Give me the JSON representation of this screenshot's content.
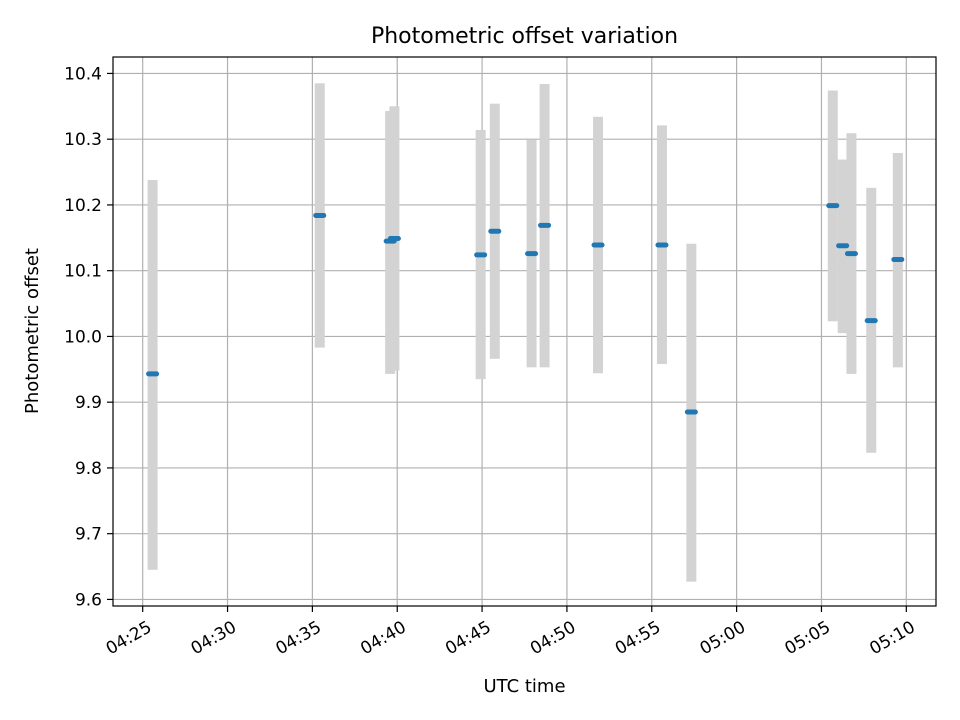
{
  "chart_data": {
    "type": "scatter",
    "title": "Photometric offset variation",
    "xlabel": "UTC time",
    "ylabel": "Photometric offset",
    "xlim": [
      "04:23:15",
      "05:11:45"
    ],
    "ylim": [
      9.59,
      10.425
    ],
    "x_ticks": [
      "04:25",
      "04:30",
      "04:35",
      "04:40",
      "04:45",
      "04:50",
      "04:55",
      "05:00",
      "05:05",
      "05:10"
    ],
    "y_ticks": [
      9.6,
      9.7,
      9.8,
      9.9,
      10.0,
      10.1,
      10.2,
      10.3,
      10.4
    ],
    "grid": true,
    "colors": {
      "points": "#1f77b4",
      "error_bars": "#d3d3d3",
      "grid": "#b0b0b0"
    },
    "series": [
      {
        "points": [
          {
            "x": "04:25:35",
            "y": 9.943,
            "yerr_low": 9.645,
            "yerr_high": 10.238
          },
          {
            "x": "04:35:26",
            "y": 10.184,
            "yerr_low": 9.983,
            "yerr_high": 10.385
          },
          {
            "x": "04:39:35",
            "y": 10.145,
            "yerr_low": 9.943,
            "yerr_high": 10.343
          },
          {
            "x": "04:39:50",
            "y": 10.149,
            "yerr_low": 9.948,
            "yerr_high": 10.35
          },
          {
            "x": "04:44:55",
            "y": 10.124,
            "yerr_low": 9.935,
            "yerr_high": 10.314
          },
          {
            "x": "04:45:45",
            "y": 10.16,
            "yerr_low": 9.966,
            "yerr_high": 10.354
          },
          {
            "x": "04:47:55",
            "y": 10.126,
            "yerr_low": 9.953,
            "yerr_high": 10.299
          },
          {
            "x": "04:48:41",
            "y": 10.169,
            "yerr_low": 9.953,
            "yerr_high": 10.384
          },
          {
            "x": "04:51:50",
            "y": 10.139,
            "yerr_low": 9.944,
            "yerr_high": 10.334
          },
          {
            "x": "04:55:36",
            "y": 10.139,
            "yerr_low": 9.958,
            "yerr_high": 10.321
          },
          {
            "x": "04:57:20",
            "y": 9.885,
            "yerr_low": 9.627,
            "yerr_high": 10.141
          },
          {
            "x": "05:05:40",
            "y": 10.199,
            "yerr_low": 10.023,
            "yerr_high": 10.374
          },
          {
            "x": "05:06:15",
            "y": 10.138,
            "yerr_low": 10.005,
            "yerr_high": 10.269
          },
          {
            "x": "05:06:46",
            "y": 10.126,
            "yerr_low": 9.943,
            "yerr_high": 10.309
          },
          {
            "x": "05:07:56",
            "y": 10.024,
            "yerr_low": 9.823,
            "yerr_high": 10.226
          },
          {
            "x": "05:09:30",
            "y": 10.117,
            "yerr_low": 9.953,
            "yerr_high": 10.279
          }
        ]
      }
    ]
  }
}
